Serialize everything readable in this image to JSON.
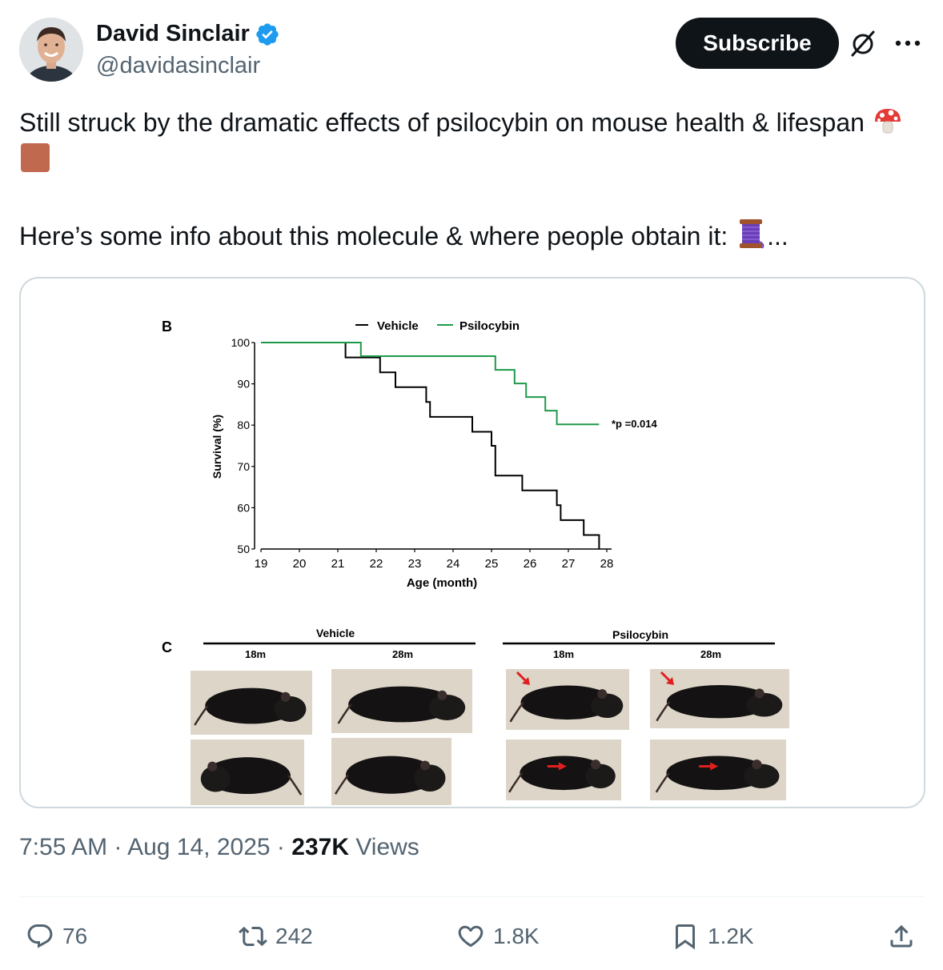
{
  "author": {
    "name": "David Sinclair",
    "handle": "@davidasinclair",
    "verified": true,
    "avatar": "avatar-photo"
  },
  "header": {
    "subscribe_label": "Subscribe",
    "grok_icon": "grok-icon",
    "more_icon": "more-dots-icon"
  },
  "tweet": {
    "line1": "Still struck by the dramatic effects of psilocybin on mouse health & lifespan",
    "line1_emojis": [
      "mushroom-emoji",
      "brown-square-emoji"
    ],
    "line2": "Here’s some info about this molecule & where people obtain it:",
    "line2_emoji": "thread-spool-emoji",
    "line2_suffix": "..."
  },
  "figure": {
    "panel_b_label": "B",
    "panel_c_label": "C",
    "p_value": "*p =0.014",
    "panel_c": {
      "groups": [
        {
          "name": "Vehicle",
          "timepoints": [
            "18m",
            "28m"
          ]
        },
        {
          "name": "Psilocybin",
          "timepoints": [
            "18m",
            "28m"
          ]
        }
      ]
    }
  },
  "chart_data": {
    "type": "line",
    "subtype": "kaplan-meier-step",
    "xlabel": "Age (month)",
    "ylabel": "Survival (%)",
    "xlim": [
      19,
      28
    ],
    "ylim": [
      50,
      100
    ],
    "xticks": [
      19,
      20,
      21,
      22,
      23,
      24,
      25,
      26,
      27,
      28
    ],
    "yticks": [
      50,
      60,
      70,
      80,
      90,
      100
    ],
    "legend_placement": "top-center",
    "series": [
      {
        "name": "Vehicle",
        "color": "#000000",
        "points": [
          [
            19,
            100
          ],
          [
            21.2,
            100
          ],
          [
            21.2,
            96.4
          ],
          [
            22.1,
            96.4
          ],
          [
            22.1,
            92.8
          ],
          [
            22.5,
            92.8
          ],
          [
            22.5,
            89.2
          ],
          [
            23.3,
            89.2
          ],
          [
            23.3,
            85.6
          ],
          [
            23.4,
            85.6
          ],
          [
            23.4,
            82
          ],
          [
            24.5,
            82
          ],
          [
            24.5,
            78.4
          ],
          [
            25,
            78.4
          ],
          [
            25,
            75
          ],
          [
            25.1,
            75
          ],
          [
            25.1,
            67.8
          ],
          [
            25.8,
            67.8
          ],
          [
            25.8,
            64.2
          ],
          [
            26.7,
            64.2
          ],
          [
            26.7,
            60.6
          ],
          [
            26.8,
            60.6
          ],
          [
            26.8,
            57
          ],
          [
            27.4,
            57
          ],
          [
            27.4,
            53.4
          ],
          [
            27.8,
            53.4
          ],
          [
            27.8,
            50
          ]
        ]
      },
      {
        "name": "Psilocybin",
        "color": "#1e9a4a",
        "points": [
          [
            19,
            100
          ],
          [
            21.6,
            100
          ],
          [
            21.6,
            96.7
          ],
          [
            25.1,
            96.7
          ],
          [
            25.1,
            93.4
          ],
          [
            25.6,
            93.4
          ],
          [
            25.6,
            90.1
          ],
          [
            25.9,
            90.1
          ],
          [
            25.9,
            86.8
          ],
          [
            26.4,
            86.8
          ],
          [
            26.4,
            83.5
          ],
          [
            26.7,
            83.5
          ],
          [
            26.7,
            80.2
          ],
          [
            27.8,
            80.2
          ]
        ]
      }
    ]
  },
  "meta": {
    "time": "7:55 AM",
    "separator": " · ",
    "date": "Aug 14, 2025",
    "views_count": "237K",
    "views_label": " Views"
  },
  "actions": {
    "replies": "76",
    "reposts": "242",
    "likes": "1.8K",
    "bookmarks": "1.2K"
  },
  "colors": {
    "text_primary": "#0f1419",
    "text_secondary": "#536471",
    "verified_blue": "#1d9bf0",
    "psilocybin_green": "#1e9a4a",
    "arrow_red": "#e02020"
  }
}
